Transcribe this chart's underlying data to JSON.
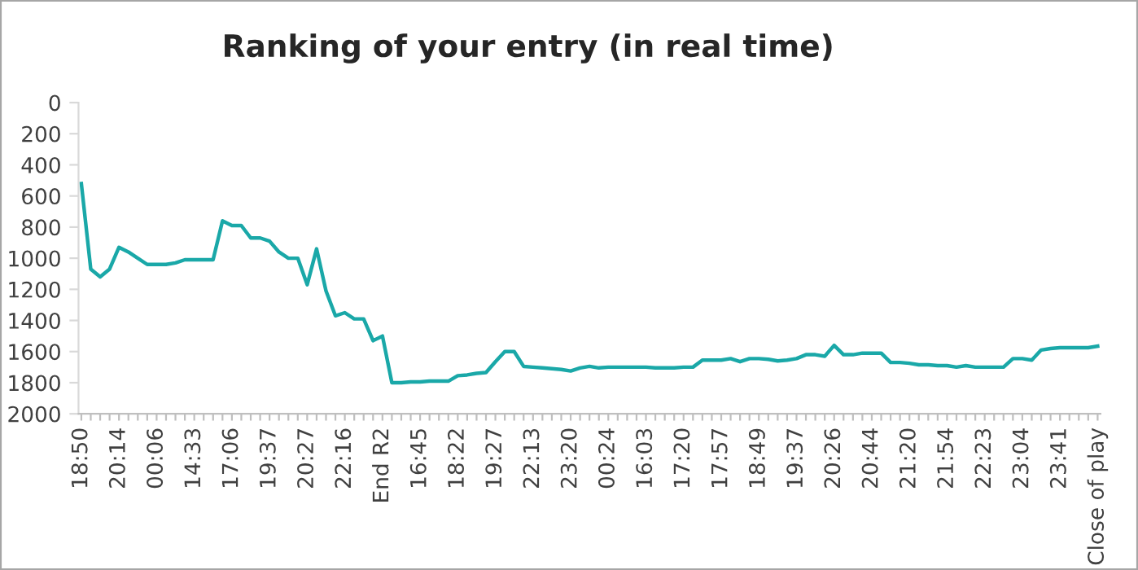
{
  "chart_data": {
    "type": "line",
    "title": "Ranking of your entry (in real time)",
    "categories": [
      "18:50",
      null,
      null,
      null,
      "20:14",
      null,
      null,
      null,
      "00:06",
      null,
      null,
      null,
      "14:33",
      null,
      null,
      null,
      "17:06",
      null,
      null,
      null,
      "19:37",
      null,
      null,
      null,
      "20:27",
      null,
      null,
      null,
      "22:16",
      null,
      null,
      null,
      "End R2",
      null,
      null,
      null,
      "16:45",
      null,
      null,
      null,
      "18:22",
      null,
      null,
      null,
      "19:27",
      null,
      null,
      null,
      "22:13",
      null,
      null,
      null,
      "23:20",
      null,
      null,
      null,
      "00:24",
      null,
      null,
      null,
      "16:03",
      null,
      null,
      null,
      "17:20",
      null,
      null,
      null,
      "17:57",
      null,
      null,
      null,
      "18:49",
      null,
      null,
      null,
      "19:37",
      null,
      null,
      null,
      "20:26",
      null,
      null,
      null,
      "20:44",
      null,
      null,
      null,
      "21:20",
      null,
      null,
      null,
      "21:54",
      null,
      null,
      null,
      "22:23",
      null,
      null,
      null,
      "23:04",
      null,
      null,
      null,
      "23:41",
      null,
      null,
      null,
      "Close of play"
    ],
    "series": [
      {
        "color": "#1aa8a8",
        "values": [
          520,
          1070,
          1120,
          1070,
          930,
          960,
          1000,
          1040,
          1040,
          1040,
          1030,
          1010,
          1010,
          1010,
          1010,
          760,
          790,
          790,
          870,
          870,
          890,
          960,
          1000,
          1000,
          1170,
          940,
          1210,
          1370,
          1350,
          1390,
          1390,
          1530,
          1500,
          1800,
          1800,
          1795,
          1795,
          1790,
          1790,
          1790,
          1755,
          1750,
          1740,
          1735,
          1665,
          1600,
          1600,
          1695,
          1700,
          1705,
          1710,
          1715,
          1725,
          1705,
          1695,
          1705,
          1700,
          1700,
          1700,
          1700,
          1700,
          1705,
          1705,
          1705,
          1700,
          1700,
          1655,
          1655,
          1655,
          1645,
          1665,
          1645,
          1645,
          1650,
          1660,
          1655,
          1645,
          1620,
          1620,
          1630,
          1560,
          1620,
          1620,
          1610,
          1610,
          1610,
          1670,
          1670,
          1675,
          1685,
          1685,
          1690,
          1690,
          1700,
          1690,
          1700,
          1700,
          1700,
          1700,
          1645,
          1645,
          1655,
          1590,
          1580,
          1575,
          1575,
          1575,
          1575,
          1565
        ]
      }
    ],
    "ylim": [
      2000,
      0
    ],
    "yticks": [
      0,
      200,
      400,
      600,
      800,
      1000,
      1200,
      1400,
      1600,
      1800,
      2000
    ],
    "grid": false,
    "legend": false
  }
}
